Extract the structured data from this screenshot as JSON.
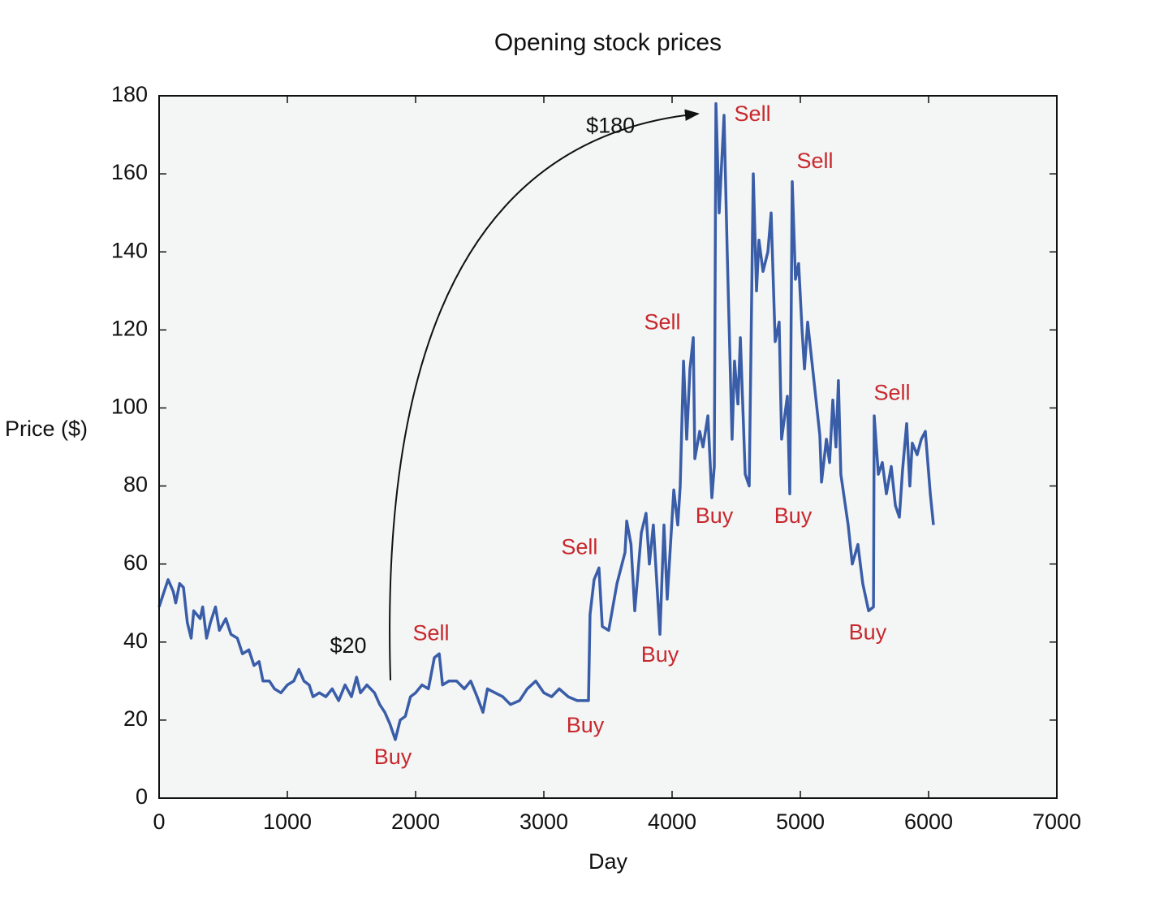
{
  "chart_data": {
    "type": "line",
    "title": "Opening stock prices",
    "xlabel": "Day",
    "ylabel": "Price ($)",
    "x": [
      0,
      30,
      70,
      110,
      130,
      160,
      190,
      220,
      250,
      270,
      320,
      340,
      370,
      400,
      440,
      470,
      520,
      560,
      610,
      650,
      700,
      740,
      780,
      810,
      860,
      900,
      950,
      1000,
      1050,
      1090,
      1130,
      1170,
      1200,
      1250,
      1300,
      1350,
      1400,
      1450,
      1500,
      1540,
      1570,
      1620,
      1680,
      1720,
      1760,
      1800,
      1842,
      1880,
      1920,
      1960,
      2000,
      2050,
      2100,
      2146,
      2184,
      2210,
      2260,
      2320,
      2380,
      2430,
      2480,
      2525,
      2560,
      2620,
      2680,
      2740,
      2810,
      2870,
      2937,
      3000,
      3060,
      3120,
      3190,
      3260,
      3348,
      3360,
      3392,
      3430,
      3456,
      3506,
      3570,
      3633,
      3646,
      3680,
      3709,
      3760,
      3797,
      3823,
      3854,
      3905,
      3937,
      3962,
      4013,
      4044,
      4063,
      4089,
      4114,
      4139,
      4165,
      4177,
      4215,
      4241,
      4279,
      4310,
      4329,
      4342,
      4367,
      4405,
      4430,
      4468,
      4487,
      4513,
      4532,
      4570,
      4601,
      4633,
      4658,
      4677,
      4709,
      4747,
      4772,
      4804,
      4835,
      4854,
      4899,
      4918,
      4937,
      4962,
      4987,
      5013,
      5032,
      5057,
      5152,
      5165,
      5203,
      5228,
      5253,
      5278,
      5297,
      5316,
      5373,
      5405,
      5449,
      5487,
      5532,
      5570,
      5576,
      5608,
      5639,
      5671,
      5709,
      5741,
      5772,
      5797,
      5829,
      5854,
      5873,
      5911,
      5943,
      5975,
      6013,
      6038
    ],
    "values": [
      49,
      52,
      56,
      53,
      50,
      55,
      54,
      45,
      41,
      48,
      46,
      49,
      41,
      45,
      49,
      43,
      46,
      42,
      41,
      37,
      38,
      34,
      35,
      30,
      30,
      28,
      27,
      29,
      30,
      33,
      30,
      29,
      26,
      27,
      26,
      28,
      25,
      29,
      26,
      31,
      27,
      29,
      27,
      24,
      22,
      19,
      15,
      20,
      21,
      26,
      27,
      29,
      28,
      36,
      37,
      29,
      30,
      30,
      28,
      30,
      26,
      22,
      28,
      27,
      26,
      24,
      25,
      28,
      30,
      27,
      26,
      28,
      26,
      25,
      25,
      47,
      56,
      59,
      44,
      43,
      55,
      63,
      71,
      65,
      48,
      68,
      73,
      60,
      70,
      42,
      70,
      51,
      79,
      70,
      80,
      112,
      92,
      110,
      118,
      87,
      94,
      90,
      98,
      77,
      85,
      178,
      150,
      175,
      140,
      92,
      112,
      101,
      118,
      83,
      80,
      160,
      130,
      143,
      135,
      140,
      150,
      117,
      122,
      92,
      103,
      78,
      158,
      133,
      137,
      120,
      110,
      122,
      93,
      81,
      92,
      86,
      102,
      90,
      107,
      83,
      70,
      60,
      65,
      55,
      48,
      49,
      98,
      83,
      86,
      78,
      85,
      75,
      72,
      84,
      96,
      80,
      91,
      88,
      92,
      94,
      78,
      70
    ],
    "color": "#3a5da8",
    "xlim": [
      0,
      7000
    ],
    "xticks": [
      0,
      1000,
      2000,
      3000,
      4000,
      5000,
      6000,
      7000
    ],
    "ylim": [
      0,
      180
    ],
    "yticks": [
      0,
      20,
      40,
      60,
      80,
      100,
      120,
      140,
      160,
      180
    ],
    "grid": false,
    "annotations": [
      {
        "text": "$180",
        "x": 3520,
        "y": 172,
        "color": "#111111"
      },
      {
        "text": "Sell",
        "x": 4627,
        "y": 175,
        "color": "#c8282d"
      },
      {
        "text": "Sell",
        "x": 5114,
        "y": 163,
        "color": "#c8282d"
      },
      {
        "text": "Sell",
        "x": 3924,
        "y": 121.7,
        "color": "#c8282d"
      },
      {
        "text": "Sell",
        "x": 5715,
        "y": 103.6,
        "color": "#c8282d"
      },
      {
        "text": "Sell",
        "x": 3278,
        "y": 64,
        "color": "#c8282d"
      },
      {
        "text": "Sell",
        "x": 2120,
        "y": 42,
        "color": "#c8282d"
      },
      {
        "text": "$20",
        "x": 1475,
        "y": 38.7,
        "color": "#111111"
      },
      {
        "text": "Buy",
        "x": 1823,
        "y": 10.2,
        "color": "#c8282d"
      },
      {
        "text": "Buy",
        "x": 3323,
        "y": 18.3,
        "color": "#c8282d"
      },
      {
        "text": "Buy",
        "x": 3905,
        "y": 36.4,
        "color": "#c8282d"
      },
      {
        "text": "Buy",
        "x": 4329,
        "y": 72,
        "color": "#c8282d"
      },
      {
        "text": "Buy",
        "x": 4943,
        "y": 72,
        "color": "#c8282d"
      },
      {
        "text": "Buy",
        "x": 5525,
        "y": 42.2,
        "color": "#c8282d"
      }
    ],
    "arrow": {
      "x": [
        1804,
        4203
      ],
      "y": [
        30.2,
        175.4
      ]
    }
  }
}
